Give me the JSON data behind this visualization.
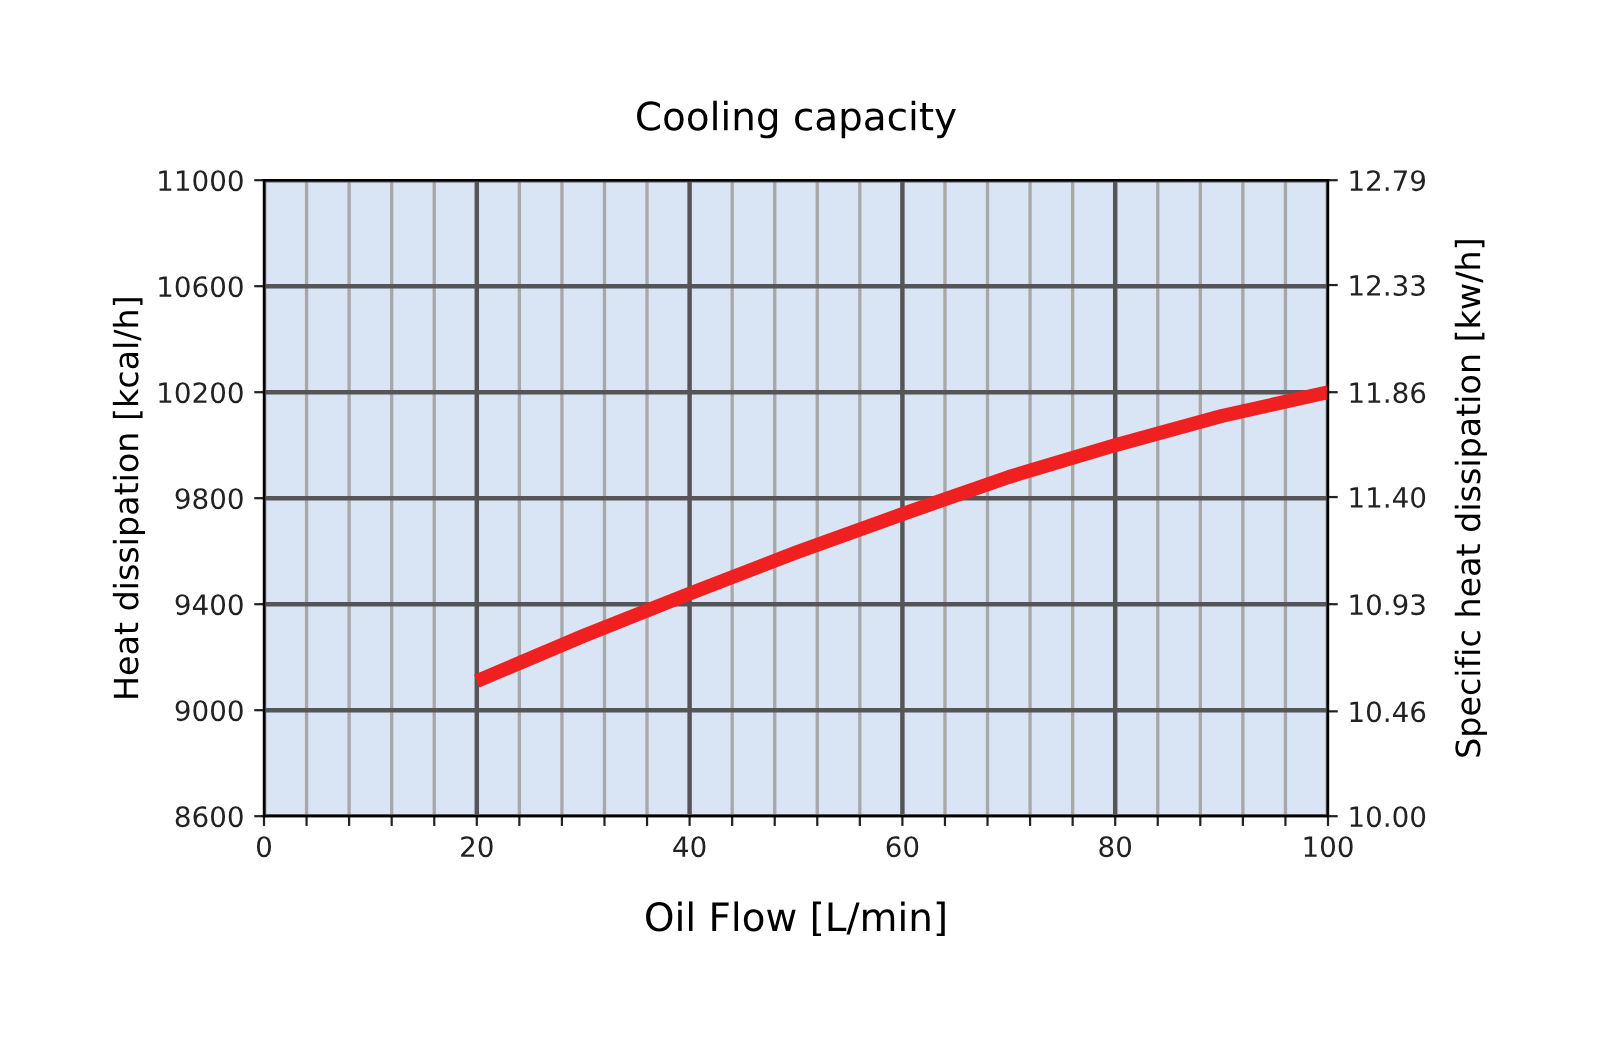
{
  "chart_data": {
    "type": "line",
    "title": "Cooling capacity",
    "xlabel": "Oil Flow [L/min]",
    "ylabel": "Heat dissipation [kcal/h]",
    "y2label": "Specific heat dissipation [kw/h]",
    "series": [
      {
        "color": "#f02020",
        "x": [
          20,
          30,
          40,
          50,
          60,
          70,
          80,
          90,
          100
        ],
        "values": [
          9110,
          9280,
          9440,
          9595,
          9740,
          9880,
          10000,
          10110,
          10200
        ]
      }
    ],
    "xlim": [
      0,
      100
    ],
    "xticks": [
      0,
      {
        "value": 4,
        "label": null
      },
      {
        "value": 8,
        "label": null
      },
      {
        "value": 12,
        "label": null
      },
      {
        "value": 16,
        "label": null
      },
      20,
      {
        "value": 24,
        "label": null
      },
      {
        "value": 28,
        "label": null
      },
      {
        "value": 32,
        "label": null
      },
      {
        "value": 36,
        "label": null
      },
      40,
      {
        "value": 44,
        "label": null
      },
      {
        "value": 48,
        "label": null
      },
      {
        "value": 52,
        "label": null
      },
      {
        "value": 56,
        "label": null
      },
      60,
      {
        "value": 64,
        "label": null
      },
      {
        "value": 68,
        "label": null
      },
      {
        "value": 72,
        "label": null
      },
      {
        "value": 76,
        "label": null
      },
      80,
      {
        "value": 84,
        "label": null
      },
      {
        "value": 88,
        "label": null
      },
      {
        "value": 92,
        "label": null
      },
      {
        "value": 96,
        "label": null
      },
      100
    ],
    "ylim": [
      8600,
      11000
    ],
    "yticks": [
      8600,
      9000,
      9400,
      9800,
      10200,
      10600,
      11000
    ],
    "y2lim": [
      10.0,
      12.79
    ],
    "y2ticks": [
      {
        "value": 10.0,
        "label": "10.00"
      },
      10.46,
      10.93,
      {
        "value": 11.4,
        "label": "11.40"
      },
      11.86,
      12.33,
      12.79
    ],
    "grid": true,
    "marker": "none",
    "line_style": "solid"
  }
}
